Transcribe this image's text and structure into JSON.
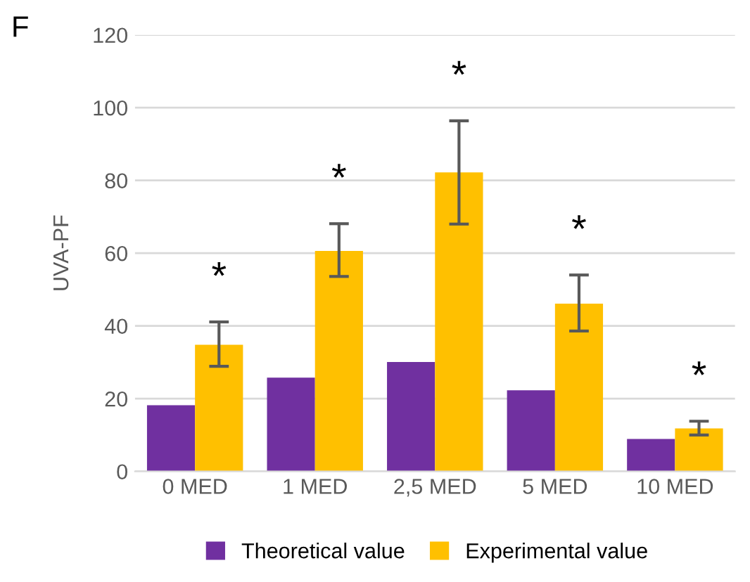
{
  "chart_data": {
    "type": "bar",
    "title": "F",
    "ylabel": "UVA-PF",
    "categories": [
      "0 MED",
      "1 MED",
      "2,5 MED",
      "5 MED",
      "10 MED"
    ],
    "series": [
      {
        "name": "Theoretical value",
        "color": "#7030a0",
        "values": [
          18.2,
          25.8,
          30.1,
          22.3,
          8.9
        ]
      },
      {
        "name": "Experimental value",
        "color": "#ffc000",
        "values": [
          34.8,
          60.6,
          82.2,
          46.1,
          11.8
        ],
        "errors": [
          [
            28.9,
            41.1
          ],
          [
            53.6,
            68.1
          ],
          [
            68.0,
            96.4
          ],
          [
            38.6,
            54.0
          ],
          [
            10.0,
            13.8
          ]
        ]
      }
    ],
    "ylim": [
      0,
      120
    ],
    "yticks": [
      0,
      20,
      40,
      60,
      80,
      100,
      120
    ],
    "grid": "y",
    "legend": "bottom",
    "annotations": [
      "*",
      "*",
      "*",
      "*",
      "*"
    ]
  }
}
